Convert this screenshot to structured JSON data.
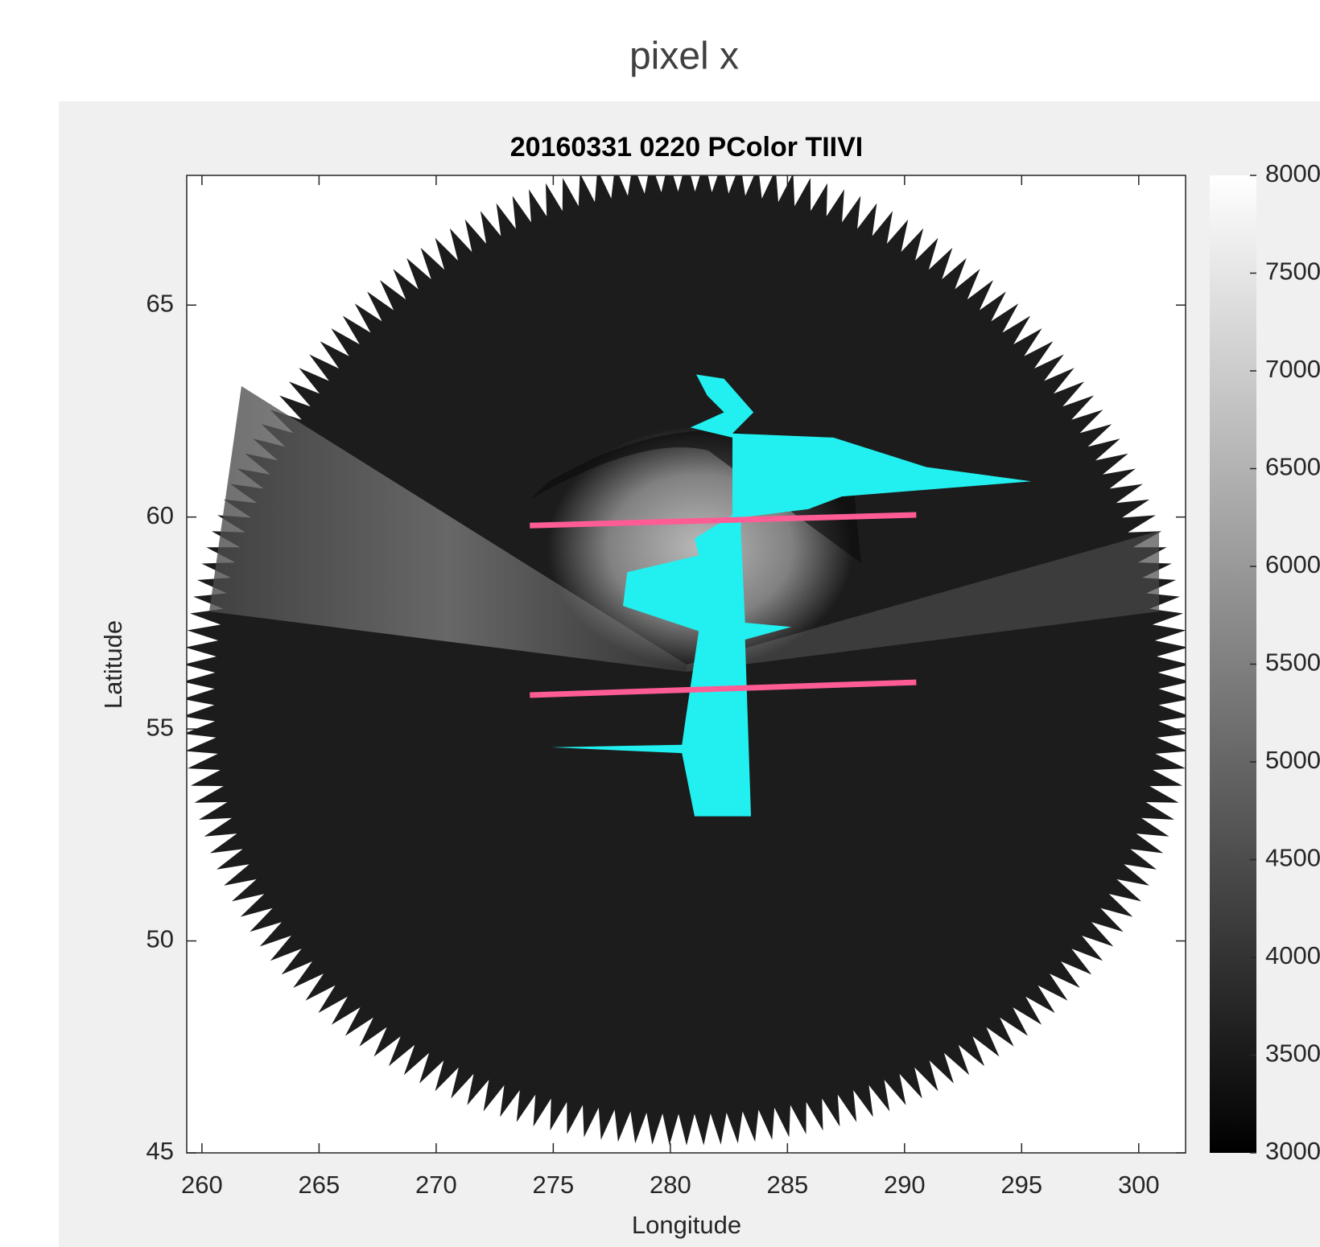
{
  "figure_title": "pixel x",
  "chart_data": {
    "type": "line",
    "title": "20160331 0220 PColor TIIVI",
    "x_label": "Longitude",
    "y_label": "Latitude",
    "xlim": [
      259.35,
      302
    ],
    "xticks": [
      260,
      265,
      270,
      275,
      280,
      285,
      290,
      295,
      300
    ],
    "ylim": [
      45,
      68.06
    ],
    "yticks": [
      45,
      50,
      55,
      60,
      65
    ],
    "series": [
      {
        "color": "#ff5c95",
        "x": [
          274,
          290.5
        ],
        "values": [
          59.8,
          60.05
        ]
      },
      {
        "color": "#ff5c95",
        "x": [
          274,
          290.5
        ],
        "values": [
          55.8,
          56.1
        ]
      }
    ],
    "colorbar": {
      "lim": [
        3000,
        8000
      ],
      "ticks": [
        3000,
        3500,
        4000,
        4500,
        5000,
        5500,
        6000,
        6500,
        7000,
        7500,
        8000
      ]
    }
  }
}
